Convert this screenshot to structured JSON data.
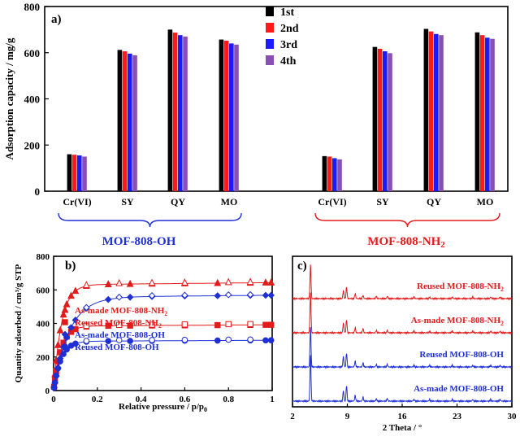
{
  "chart_data": [
    {
      "id": "a",
      "panel_label": "a)",
      "type": "bar",
      "ylabel": "Adsorption capacity / mg/g",
      "ylim": [
        0,
        800
      ],
      "yticks": [
        0,
        200,
        400,
        600,
        800
      ],
      "categories": [
        "Cr(VI)",
        "SY",
        "QY",
        "MO",
        "Cr(VI)",
        "SY",
        "QY",
        "MO"
      ],
      "groups": [
        {
          "label": "MOF-808-OH",
          "color": "#1f2fd6",
          "label_sub": ""
        },
        {
          "label": "MOF-808-NH",
          "color": "#e31b1b",
          "label_sub": "2"
        }
      ],
      "legend": [
        "1st",
        "2nd",
        "3rd",
        "4th"
      ],
      "colors": [
        "#000000",
        "#ff1a1a",
        "#1a1aff",
        "#8a4fb5"
      ],
      "series": [
        {
          "name": "1st",
          "values": [
            160,
            612,
            700,
            657,
            152,
            625,
            703,
            688
          ]
        },
        {
          "name": "2nd",
          "values": [
            158,
            606,
            687,
            652,
            150,
            617,
            692,
            676
          ]
        },
        {
          "name": "3rd",
          "values": [
            155,
            596,
            676,
            640,
            143,
            606,
            681,
            665
          ]
        },
        {
          "name": "4th",
          "values": [
            150,
            589,
            670,
            635,
            138,
            598,
            676,
            660
          ]
        }
      ]
    },
    {
      "id": "b",
      "panel_label": "b)",
      "type": "scatter",
      "xlabel": "Relative pressure / p/p",
      "xlabel_sub": "0",
      "ylabel": "Quantity adsorbed / cm³/g STP",
      "xlim": [
        0,
        1
      ],
      "ylim": [
        0,
        800
      ],
      "xticks": [
        "0",
        "0.2",
        "0.4",
        "0.6",
        "0.8",
        "1"
      ],
      "yticks": [
        "0",
        "200",
        "400",
        "600",
        "800"
      ],
      "series": [
        {
          "name": "As-made MOF-808-NH",
          "name_sub": "2",
          "color": "#e31b1b",
          "marker": "triangle",
          "plateau": 640,
          "k": 28
        },
        {
          "name": "Reused MOF-808-NH",
          "name_sub": "2",
          "color": "#e31b1b",
          "marker": "square",
          "plateau": 390,
          "k": 30
        },
        {
          "name": "As-made MOF-808-OH",
          "name_sub": "",
          "color": "#1f2fd6",
          "marker": "diamond",
          "plateau": 565,
          "k": 14
        },
        {
          "name": "Reused MOF-808-OH",
          "name_sub": "",
          "color": "#1f2fd6",
          "marker": "circle",
          "plateau": 298,
          "k": 30
        }
      ]
    },
    {
      "id": "c",
      "panel_label": "c)",
      "type": "line",
      "xlabel": "2 Theta / °",
      "xlim": [
        2,
        30
      ],
      "xticks": [
        "2",
        "9",
        "16",
        "23",
        "30"
      ],
      "peaks": [
        4.3,
        8.5,
        8.9,
        10.0,
        11.0,
        12.7,
        14.1,
        17.5,
        19.5,
        22.4,
        25.0,
        27.3,
        28.5
      ],
      "patterns": [
        {
          "name": "Reused MOF-808-NH",
          "name_sub": "2",
          "color": "#e31b1b"
        },
        {
          "name": "As-made MOF-808-NH",
          "name_sub": "2",
          "color": "#e31b1b"
        },
        {
          "name": "Reused MOF-808-OH",
          "name_sub": "",
          "color": "#1f2fd6"
        },
        {
          "name": "As-made MOF-808-OH",
          "name_sub": "",
          "color": "#1f2fd6"
        }
      ]
    }
  ]
}
